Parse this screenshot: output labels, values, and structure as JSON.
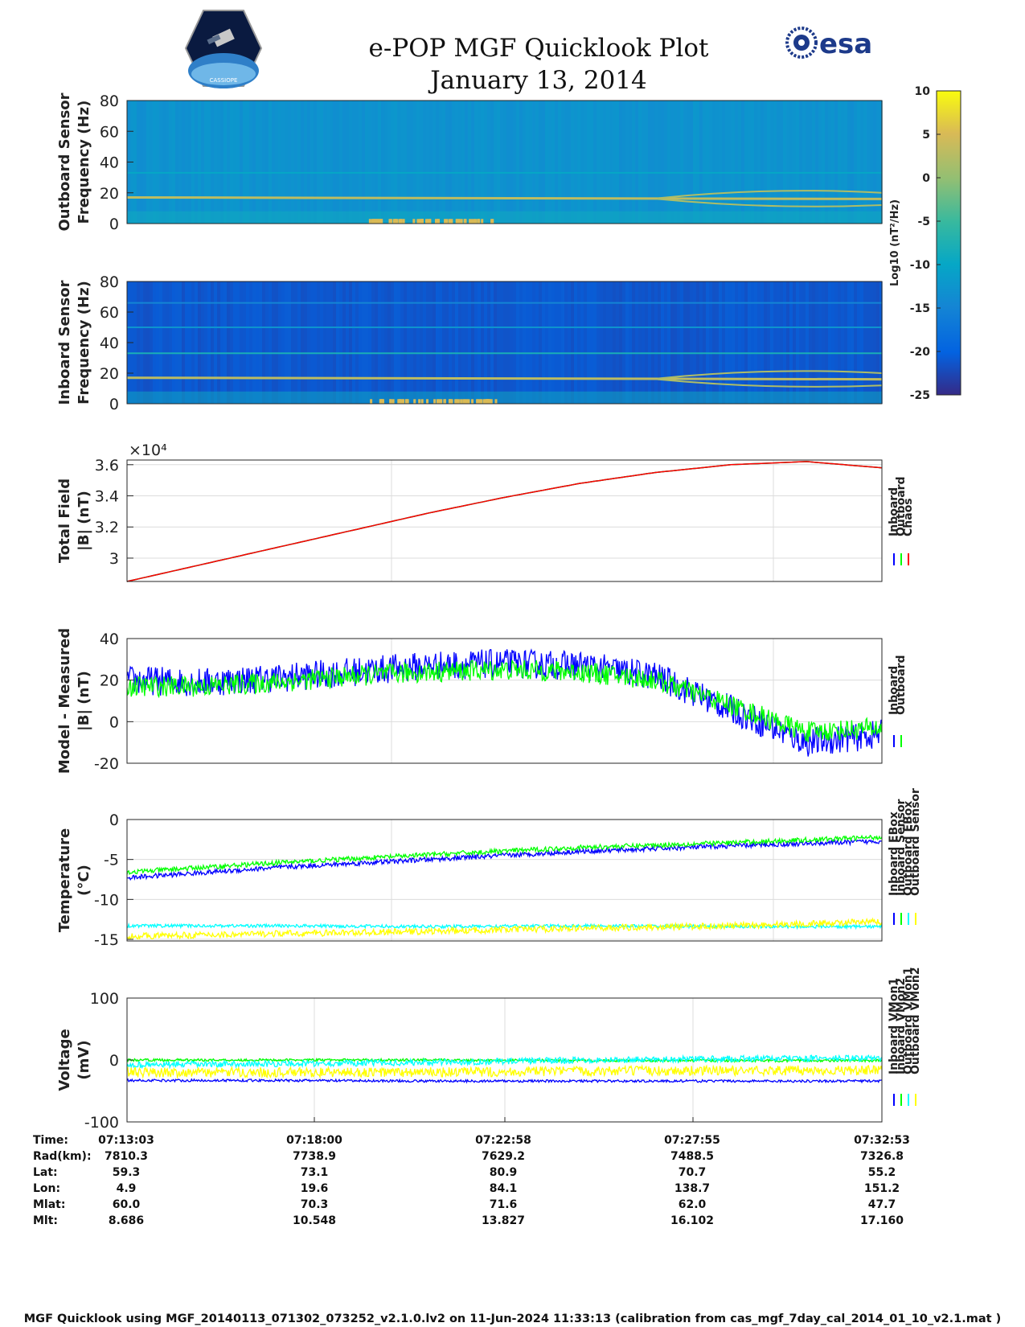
{
  "header": {
    "title_line1": "e-POP MGF Quicklook Plot",
    "title_line2": "January 13, 2014",
    "logo_left_text": "CASSIOPE",
    "logo_right_text": "esa"
  },
  "colorbar": {
    "label": "Log10 (nT²/Hz)",
    "ticks": [
      10,
      5,
      0,
      -5,
      -10,
      -15,
      -20,
      -25
    ],
    "range": [
      -25,
      10
    ],
    "colormap": "parula"
  },
  "chart_data": [
    {
      "id": "outboard-spectrogram",
      "type": "heatmap",
      "ylabel": [
        "Outboard Sensor",
        "Frequency (Hz)"
      ],
      "ylim": [
        0,
        80
      ],
      "yticks": [
        0,
        20,
        40,
        60,
        80
      ],
      "background_level": -13,
      "lines": [
        {
          "desc": "strong",
          "values_start": 17,
          "values_end": 16,
          "level": 3
        },
        {
          "desc": "harmonic",
          "values_start": 33,
          "values_end": 33,
          "level": -10
        }
      ]
    },
    {
      "id": "inboard-spectrogram",
      "type": "heatmap",
      "ylabel": [
        "Inboard Sensor",
        "Frequency (Hz)"
      ],
      "ylim": [
        0,
        80
      ],
      "yticks": [
        0,
        20,
        40,
        60,
        80
      ],
      "background_level": -21,
      "lines": [
        {
          "desc": "strong",
          "values_start": 17,
          "values_end": 16,
          "level": 3
        },
        {
          "desc": "harmonic",
          "values_start": 33,
          "values_end": 33,
          "level": -8
        },
        {
          "desc": "harmonic",
          "values_start": 50,
          "values_end": 50,
          "level": -13
        },
        {
          "desc": "harmonic",
          "values_start": 66,
          "values_end": 66,
          "level": -15
        }
      ]
    },
    {
      "id": "total-field",
      "type": "line",
      "ylabel": [
        "Total Field",
        "|B| (nT)"
      ],
      "exponent_label": "×10⁴",
      "ylim": [
        2.85,
        3.63
      ],
      "yticks": [
        3,
        3.2,
        3.4,
        3.6
      ],
      "x": [
        0,
        0.5,
        1,
        1.5,
        2,
        2.5,
        3,
        3.5,
        4,
        4.5,
        5
      ],
      "series": [
        {
          "name": "Inboard",
          "color": "#0000ff",
          "values": [
            2.85,
            2.96,
            3.07,
            3.18,
            3.29,
            3.39,
            3.48,
            3.55,
            3.6,
            3.62,
            3.58
          ]
        },
        {
          "name": "Outboard",
          "color": "#00ff00",
          "values": [
            2.85,
            2.96,
            3.07,
            3.18,
            3.29,
            3.39,
            3.48,
            3.55,
            3.6,
            3.62,
            3.58
          ]
        },
        {
          "name": "Chaos",
          "color": "#ff0000",
          "values": [
            2.85,
            2.96,
            3.07,
            3.18,
            3.29,
            3.39,
            3.48,
            3.55,
            3.6,
            3.62,
            3.58
          ]
        }
      ]
    },
    {
      "id": "model-measured",
      "type": "line",
      "ylabel": [
        "Model - Measured",
        "|B| (nT)"
      ],
      "ylim": [
        -20,
        40
      ],
      "yticks": [
        -20,
        0,
        20,
        40
      ],
      "x": [
        0,
        0.5,
        1,
        1.5,
        2,
        2.5,
        3,
        3.5,
        4,
        4.5,
        5
      ],
      "series": [
        {
          "name": "Inboard",
          "color": "#0000ff",
          "values": [
            20,
            19,
            21,
            24,
            27,
            28,
            27,
            22,
            6,
            -10,
            -6
          ],
          "noise": 7
        },
        {
          "name": "Outboard",
          "color": "#00ff00",
          "values": [
            17,
            17,
            19,
            22,
            24,
            25,
            24,
            20,
            8,
            -5,
            -3
          ],
          "noise": 5
        }
      ]
    },
    {
      "id": "temperature",
      "type": "line",
      "ylabel": [
        "Temperature",
        "(°C)"
      ],
      "ylim": [
        -15.2,
        0
      ],
      "yticks": [
        -15,
        -10,
        -5,
        0
      ],
      "x": [
        0,
        1,
        2,
        3,
        4,
        5
      ],
      "series": [
        {
          "name": "Inboard EBox",
          "color": "#0000ff",
          "values": [
            -7.3,
            -6,
            -5,
            -4,
            -3.3,
            -2.7
          ],
          "noise": 0.3
        },
        {
          "name": "Inboard Sensor",
          "color": "#00ff00",
          "values": [
            -6.6,
            -5.4,
            -4.4,
            -3.5,
            -2.9,
            -2.2
          ],
          "noise": 0.3
        },
        {
          "name": "Outboard EBox",
          "color": "#00ffff",
          "values": [
            -13.3,
            -13.3,
            -13.4,
            -13.3,
            -13.4,
            -13.4
          ],
          "noise": 0.2
        },
        {
          "name": "Outboard Sensor",
          "color": "#ffff00",
          "values": [
            -14.6,
            -14.3,
            -14.0,
            -13.6,
            -13.3,
            -12.8
          ],
          "noise": 0.4
        }
      ]
    },
    {
      "id": "voltage",
      "type": "line",
      "ylabel": [
        "Voltage",
        "(mV)"
      ],
      "ylim": [
        -100,
        100
      ],
      "yticks": [
        -100,
        0,
        100
      ],
      "x": [
        0,
        1,
        2,
        3,
        4,
        5
      ],
      "series": [
        {
          "name": "Inboard VMon1",
          "color": "#0000ff",
          "values": [
            -33,
            -33,
            -34,
            -34,
            -34,
            -34
          ],
          "noise": 2
        },
        {
          "name": "Inboard VMon2",
          "color": "#00ff00",
          "values": [
            0,
            0,
            0,
            -1,
            -1,
            -1
          ],
          "noise": 2
        },
        {
          "name": "Outboard VMon1",
          "color": "#00ffff",
          "values": [
            -8,
            -6,
            -4,
            0,
            2,
            3
          ],
          "noise": 5
        },
        {
          "name": "Outboard VMon2",
          "color": "#ffff00",
          "values": [
            -20,
            -20,
            -20,
            -18,
            -17,
            -17
          ],
          "noise": 8
        }
      ]
    }
  ],
  "ephemeris": {
    "row_labels": [
      "Time:",
      "Rad(km):",
      "Lat:",
      "Lon:",
      "Mlat:",
      "Mlt:"
    ],
    "columns": [
      [
        "07:13:03",
        "7810.3",
        "59.3",
        "4.9",
        "60.0",
        "8.686"
      ],
      [
        "07:18:00",
        "7738.9",
        "73.1",
        "19.6",
        "70.3",
        "10.548"
      ],
      [
        "07:22:58",
        "7629.2",
        "80.9",
        "84.1",
        "71.6",
        "13.827"
      ],
      [
        "07:27:55",
        "7488.5",
        "70.7",
        "138.7",
        "62.0",
        "16.102"
      ],
      [
        "07:32:53",
        "7326.8",
        "55.2",
        "151.2",
        "47.7",
        "17.160"
      ]
    ]
  },
  "footer": "MGF Quicklook using MGF_20140113_071302_073252_v2.1.0.lv2 on 11-Jun-2024 11:33:13 (calibration from cas_mgf_7day_cal_2014_01_10_v2.1.mat )"
}
